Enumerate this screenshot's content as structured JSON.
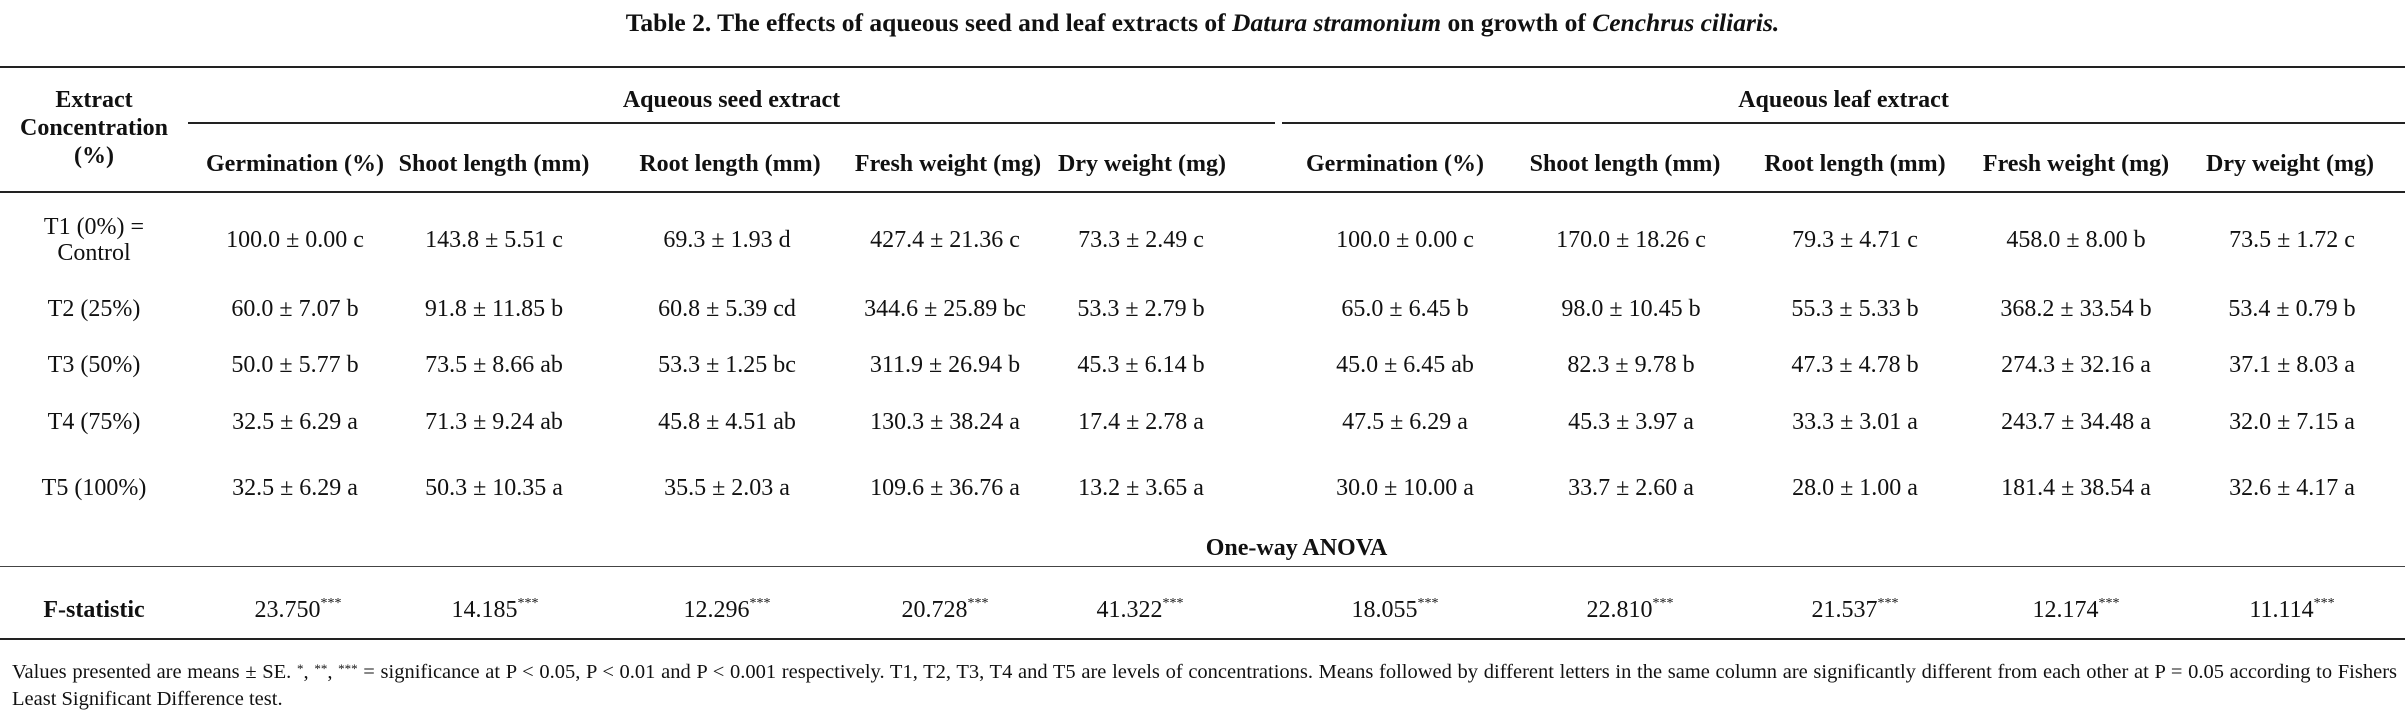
{
  "title": {
    "prefix": "Table 2. The effects of aqueous seed and leaf extracts of ",
    "species1": "Datura stramonium",
    "middle": " on growth of ",
    "species2": "Cenchrus ciliaris."
  },
  "header": {
    "row_label": [
      "Extract",
      "Concentration",
      "(%)"
    ],
    "group_seed": "Aqueous seed extract",
    "group_leaf": "Aqueous leaf extract",
    "columns": [
      "Germination (%)",
      "Shoot length (mm)",
      "Root length (mm)",
      "Fresh weight (mg)",
      "Dry weight (mg)",
      "Germination (%)",
      "Shoot length (mm)",
      "Root length (mm)",
      "Fresh weight (mg)",
      "Dry weight (mg)"
    ]
  },
  "rows": [
    {
      "label": [
        "T1 (0%) =",
        "Control"
      ],
      "values": [
        "100.0 ± 0.00 c",
        "143.8 ± 5.51 c",
        "69.3 ± 1.93 d",
        "427.4 ± 21.36 c",
        "73.3 ± 2.49 c",
        "100.0 ± 0.00 c",
        "170.0 ± 18.26 c",
        "79.3 ± 4.71 c",
        "458.0 ± 8.00 b",
        "73.5 ± 1.72 c"
      ]
    },
    {
      "label": [
        "T2 (25%)"
      ],
      "values": [
        "60.0 ± 7.07 b",
        "91.8 ± 11.85 b",
        "60.8 ± 5.39 cd",
        "344.6 ± 25.89 bc",
        "53.3 ± 2.79 b",
        "65.0 ± 6.45 b",
        "98.0 ± 10.45 b",
        "55.3 ± 5.33 b",
        "368.2 ± 33.54 b",
        "53.4 ± 0.79 b"
      ]
    },
    {
      "label": [
        "T3 (50%)"
      ],
      "values": [
        "50.0 ± 5.77 b",
        "73.5 ± 8.66 ab",
        "53.3 ± 1.25 bc",
        "311.9 ± 26.94 b",
        "45.3 ± 6.14 b",
        "45.0 ± 6.45 ab",
        "82.3 ± 9.78 b",
        "47.3 ± 4.78 b",
        "274.3 ± 32.16 a",
        "37.1 ± 8.03 a"
      ]
    },
    {
      "label": [
        "T4 (75%)"
      ],
      "values": [
        "32.5 ± 6.29 a",
        "71.3 ± 9.24 ab",
        "45.8 ± 4.51 ab",
        "130.3 ± 38.24 a",
        "17.4 ± 2.78 a",
        "47.5 ± 6.29 a",
        "45.3 ± 3.97 a",
        "33.3 ± 3.01 a",
        "243.7 ± 34.48 a",
        "32.0 ± 7.15 a"
      ]
    },
    {
      "label": [
        "T5 (100%)"
      ],
      "values": [
        "32.5 ± 6.29 a",
        "50.3 ± 10.35 a",
        "35.5 ± 2.03 a",
        "109.6 ± 36.76 a",
        "13.2 ± 3.65 a",
        "30.0 ± 10.00 a",
        "33.7 ± 2.60 a",
        "28.0 ± 1.00 a",
        "181.4 ± 38.54 a",
        "32.6 ± 4.17 a"
      ]
    }
  ],
  "anova": {
    "heading": "One-way ANOVA",
    "label": "F-statistic",
    "sig": "***",
    "values": [
      "23.750",
      "14.185",
      "12.296",
      "20.728",
      "41.322",
      "18.055",
      "22.810",
      "21.537",
      "12.174",
      "11.114"
    ]
  },
  "footnote": {
    "part1": "Values presented are means ± SE. ",
    "s1": "*",
    "sep1": ", ",
    "s2": "**",
    "sep2": ", ",
    "s3": "***",
    "part2": " = significance at P < 0.05, P < 0.01 and P < 0.001 respectively. T1, T2, T3, T4 and T5 are levels of concentrations. Means followed by different letters in the same column are significantly different from each other at P = 0.05 according to Fishers Least Significant Difference test."
  }
}
